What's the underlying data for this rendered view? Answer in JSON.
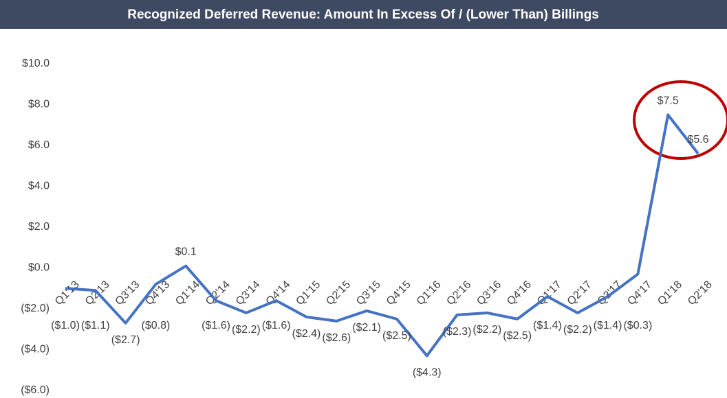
{
  "chart_data": {
    "type": "line",
    "title": "Recognized Deferred Revenue: Amount In Excess Of / (Lower Than) Billings",
    "categories": [
      "Q1'13",
      "Q2'13",
      "Q3'13",
      "Q4'13",
      "Q1'14",
      "Q2'14",
      "Q3'14",
      "Q4'14",
      "Q1'15",
      "Q2'15",
      "Q3'15",
      "Q4'15",
      "Q1'16",
      "Q2'16",
      "Q3'16",
      "Q4'16",
      "Q1'17",
      "Q2'17",
      "Q3'17",
      "Q4'17",
      "Q1'18",
      "Q2'18"
    ],
    "values": [
      -1.0,
      -1.1,
      -2.7,
      -0.8,
      0.1,
      -1.6,
      -2.2,
      -1.6,
      -2.4,
      -2.6,
      -2.1,
      -2.5,
      -4.3,
      -2.3,
      -2.2,
      -2.5,
      -1.4,
      -2.2,
      -1.4,
      -0.3,
      7.5,
      5.6
    ],
    "value_labels": [
      "($1.0)",
      "($1.1)",
      "($2.7)",
      "($0.8)",
      "$0.1",
      "($1.6)",
      "($2.2)",
      "($1.6)",
      "($2.4)",
      "($2.6)",
      "($2.1)",
      "($2.5)",
      "($4.3)",
      "($2.3)",
      "($2.2)",
      "($2.5)",
      "($1.4)",
      "($2.2)",
      "($1.4)",
      "($0.3)",
      "$7.5",
      "$5.6"
    ],
    "color": "#4472c4",
    "ylim": [
      -6,
      10
    ],
    "yticks": [
      {
        "value": -6,
        "label": "($6.0)"
      },
      {
        "value": -4,
        "label": "($4.0)"
      },
      {
        "value": -2,
        "label": "($2.0)"
      },
      {
        "value": 0,
        "label": "$0.0"
      },
      {
        "value": 2,
        "label": "$2.0"
      },
      {
        "value": 4,
        "label": "$4.0"
      },
      {
        "value": 6,
        "label": "$6.0"
      },
      {
        "value": 8,
        "label": "$8.0"
      },
      {
        "value": 10,
        "label": "$10.0"
      }
    ],
    "grid": false
  }
}
